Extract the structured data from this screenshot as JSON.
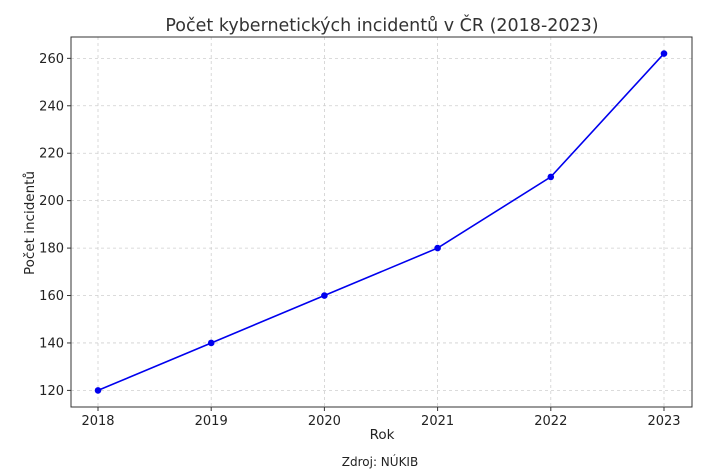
{
  "chart_data": {
    "type": "line",
    "title": "Počet kybernetických incidentů v ČR (2018-2023)",
    "xlabel": "Rok",
    "ylabel": "Počet incidentů",
    "caption": "Zdroj: NÚKIB",
    "x": [
      "2018",
      "2019",
      "2020",
      "2021",
      "2022",
      "2023"
    ],
    "series": [
      {
        "values": [
          120,
          140,
          160,
          180,
          210,
          262
        ],
        "color": "#0000ee"
      }
    ],
    "yticks": [
      120,
      140,
      160,
      180,
      200,
      220,
      240,
      260
    ],
    "ylim": [
      113,
      269
    ],
    "grid": true,
    "marker": "circle"
  }
}
